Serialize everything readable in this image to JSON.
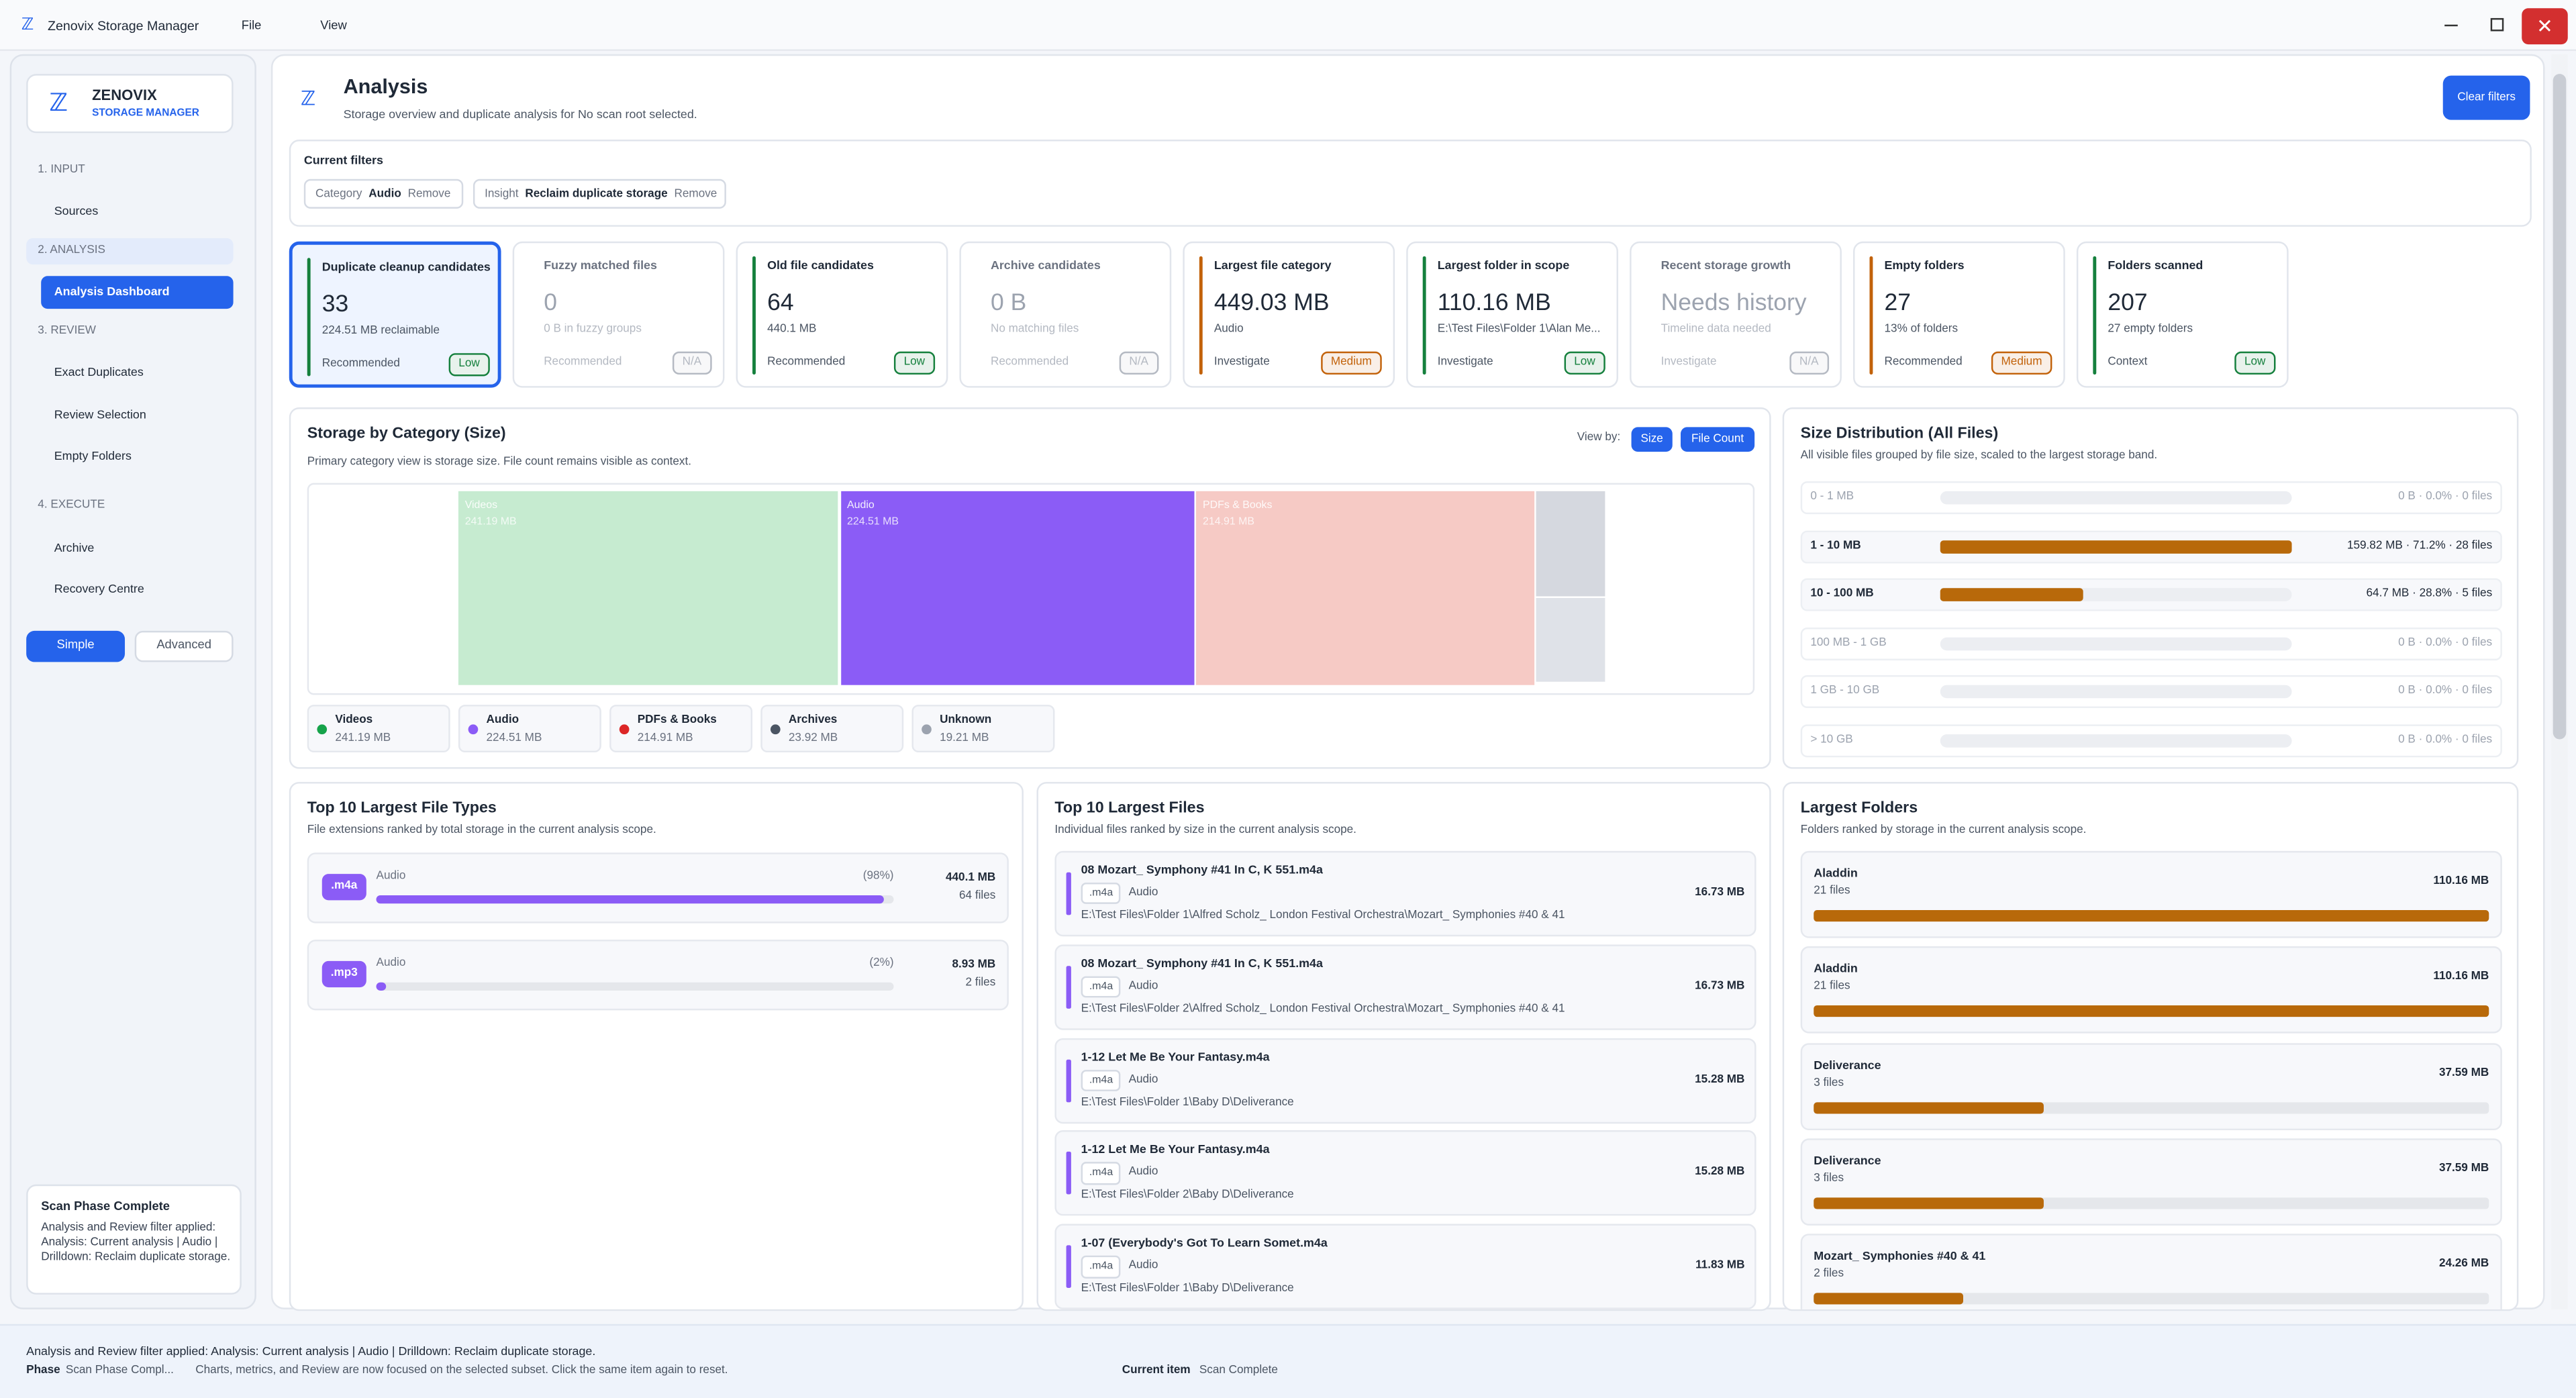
{
  "window": {
    "title": "Zenovix Storage Manager",
    "menu": [
      "File",
      "View"
    ]
  },
  "sidebar": {
    "brand": "ZENOVIX",
    "brand_sub": "STORAGE MANAGER",
    "sections": [
      {
        "title": "1. INPUT",
        "items": [
          "Sources"
        ]
      },
      {
        "title": "2. ANALYSIS",
        "items": [
          "Analysis Dashboard"
        ],
        "active": true
      },
      {
        "title": "3. REVIEW",
        "items": [
          "Exact Duplicates",
          "Review Selection",
          "Empty Folders"
        ]
      },
      {
        "title": "4. EXECUTE",
        "items": [
          "Archive",
          "Recovery Centre"
        ]
      }
    ],
    "modes": [
      "Simple",
      "Advanced"
    ],
    "status_title": "Scan Phase Complete",
    "status_text": "Analysis and Review filter applied: Analysis: Current analysis | Audio | Drilldown: Reclaim duplicate storage."
  },
  "header": {
    "title": "Analysis",
    "subtitle": "Storage overview and duplicate analysis for No scan root selected.",
    "button": "Clear filters"
  },
  "filters": {
    "title": "Current filters",
    "chips": [
      {
        "key": "Category",
        "value": "Audio",
        "action": "Remove"
      },
      {
        "key": "Insight",
        "value": "Reclaim duplicate storage",
        "action": "Remove"
      }
    ]
  },
  "cards": [
    {
      "title": "Duplicate cleanup candidates",
      "value": "33",
      "detail": "224.51 MB reclaimable",
      "footer": "Recommended",
      "badge": "Low",
      "accent": "#15803d",
      "selected": true
    },
    {
      "title": "Fuzzy matched files",
      "value": "0",
      "detail": "0 B in fuzzy groups",
      "footer": "Recommended",
      "badge": "N/A",
      "accent": null
    },
    {
      "title": "Old file candidates",
      "value": "64",
      "detail": "440.1 MB",
      "footer": "Recommended",
      "badge": "Low",
      "accent": "#15803d"
    },
    {
      "title": "Archive candidates",
      "value": "0 B",
      "detail": "No matching files",
      "footer": "Recommended",
      "badge": "N/A",
      "accent": null
    },
    {
      "title": "Largest file category",
      "value": "449.03 MB",
      "detail": "Audio",
      "footer": "Investigate",
      "badge": "Medium",
      "accent": "#c2620a"
    },
    {
      "title": "Largest folder in scope",
      "value": "110.16 MB",
      "detail": "E:\\Test Files\\Folder 1\\Alan Me...",
      "footer": "Investigate",
      "badge": "Low",
      "accent": "#15803d"
    },
    {
      "title": "Recent storage growth",
      "value": "Needs history",
      "detail": "Timeline data needed",
      "footer": "Investigate",
      "badge": "N/A",
      "accent": null
    },
    {
      "title": "Empty folders",
      "value": "27",
      "detail": "13% of folders",
      "footer": "Recommended",
      "badge": "Medium",
      "accent": "#c2620a"
    },
    {
      "title": "Folders scanned",
      "value": "207",
      "detail": "27 empty folders",
      "footer": "Context",
      "badge": "Low",
      "accent": "#15803d"
    }
  ],
  "category_chart": {
    "title": "Storage by Category (Size)",
    "subtitle": "Primary category view is storage size. File count remains visible as context.",
    "view_label": "View by:",
    "toggles": [
      "Size",
      "File Count"
    ],
    "categories": [
      {
        "name": "Videos",
        "value": 241.19,
        "value_label": "241.19 MB",
        "color": "#c6ebd0",
        "dot": "#16a34a"
      },
      {
        "name": "Audio",
        "value": 224.51,
        "value_label": "224.51 MB",
        "color": "#8b5cf6",
        "dot": "#8b5cf6"
      },
      {
        "name": "PDFs & Books",
        "value": 214.91,
        "value_label": "214.91 MB",
        "color": "#f6cac5",
        "dot": "#dc2626"
      },
      {
        "name": "Archives",
        "value": 23.92,
        "value_label": "23.92 MB",
        "color": "#d5d8df",
        "dot": "#4b5563"
      },
      {
        "name": "Unknown",
        "value": 19.21,
        "value_label": "19.21 MB",
        "color": "#dfe2e8",
        "dot": "#9ca3af"
      }
    ]
  },
  "size_distribution": {
    "title": "Size Distribution (All Files)",
    "subtitle": "All visible files grouped by file size, scaled to the largest storage band.",
    "color": "#b8690a",
    "rows": [
      {
        "label": "0 - 1 MB",
        "detail": "0 B · 0.0% · 0 files",
        "percent": 0
      },
      {
        "label": "1 - 10 MB",
        "detail": "159.82 MB · 71.2% · 28 files",
        "percent": 71.2
      },
      {
        "label": "10 - 100 MB",
        "detail": "64.7 MB · 28.8% · 5 files",
        "percent": 28.8
      },
      {
        "label": "100 MB - 1 GB",
        "detail": "0 B · 0.0% · 0 files",
        "percent": 0
      },
      {
        "label": "1 GB - 10 GB",
        "detail": "0 B · 0.0% · 0 files",
        "percent": 0
      },
      {
        "label": "> 10 GB",
        "detail": "0 B · 0.0% · 0 files",
        "percent": 0
      }
    ]
  },
  "file_types": {
    "title": "Top 10 Largest File Types",
    "subtitle": "File extensions ranked by total storage in the current analysis scope.",
    "items": [
      {
        "ext": ".m4a",
        "category": "Audio",
        "percent": 98,
        "percent_label": "(98%)",
        "size": "440.1 MB",
        "files": "64 files"
      },
      {
        "ext": ".mp3",
        "category": "Audio",
        "percent": 2,
        "percent_label": "(2%)",
        "size": "8.93 MB",
        "files": "2 files"
      }
    ]
  },
  "largest_files": {
    "title": "Top 10 Largest Files",
    "subtitle": "Individual files ranked by size in the current analysis scope.",
    "items": [
      {
        "name": "08 Mozart_ Symphony #41 In C, K 551.m4a",
        "ext": ".m4a",
        "category": "Audio",
        "path": "E:\\Test Files\\Folder 1\\Alfred Scholz_ London Festival Orchestra\\Mozart_ Symphonies #40 & 41",
        "size": "16.73 MB"
      },
      {
        "name": "08 Mozart_ Symphony #41 In C, K 551.m4a",
        "ext": ".m4a",
        "category": "Audio",
        "path": "E:\\Test Files\\Folder 2\\Alfred Scholz_ London Festival Orchestra\\Mozart_ Symphonies #40 & 41",
        "size": "16.73 MB"
      },
      {
        "name": "1-12 Let Me Be Your Fantasy.m4a",
        "ext": ".m4a",
        "category": "Audio",
        "path": "E:\\Test Files\\Folder 1\\Baby D\\Deliverance",
        "size": "15.28 MB"
      },
      {
        "name": "1-12 Let Me Be Your Fantasy.m4a",
        "ext": ".m4a",
        "category": "Audio",
        "path": "E:\\Test Files\\Folder 2\\Baby D\\Deliverance",
        "size": "15.28 MB"
      },
      {
        "name": "1-07 (Everybody's Got To Learn Somet.m4a",
        "ext": ".m4a",
        "category": "Audio",
        "path": "E:\\Test Files\\Folder 1\\Baby D\\Deliverance",
        "size": "11.83 MB"
      }
    ]
  },
  "largest_folders": {
    "title": "Largest Folders",
    "subtitle": "Folders ranked by storage in the current analysis scope.",
    "color": "#b8690a",
    "items": [
      {
        "name": "Aladdin",
        "files": "21 files",
        "size": 110.16,
        "size_label": "110.16 MB"
      },
      {
        "name": "Aladdin",
        "files": "21 files",
        "size": 110.16,
        "size_label": "110.16 MB"
      },
      {
        "name": "Deliverance",
        "files": "3 files",
        "size": 37.59,
        "size_label": "37.59 MB"
      },
      {
        "name": "Deliverance",
        "files": "3 files",
        "size": 37.59,
        "size_label": "37.59 MB"
      },
      {
        "name": "Mozart_ Symphonies #40 & 41",
        "files": "2 files",
        "size": 24.26,
        "size_label": "24.26 MB"
      }
    ]
  },
  "status_bar": {
    "message": "Analysis and Review filter applied: Analysis: Current analysis | Audio | Drilldown: Reclaim duplicate storage.",
    "phase_label": "Phase",
    "phase": "Scan Phase Compl...",
    "phase_text": "Charts, metrics, and Review are now focused on the selected subset. Click the same item again to reset.",
    "current_label": "Current item",
    "current": "Scan Complete"
  }
}
